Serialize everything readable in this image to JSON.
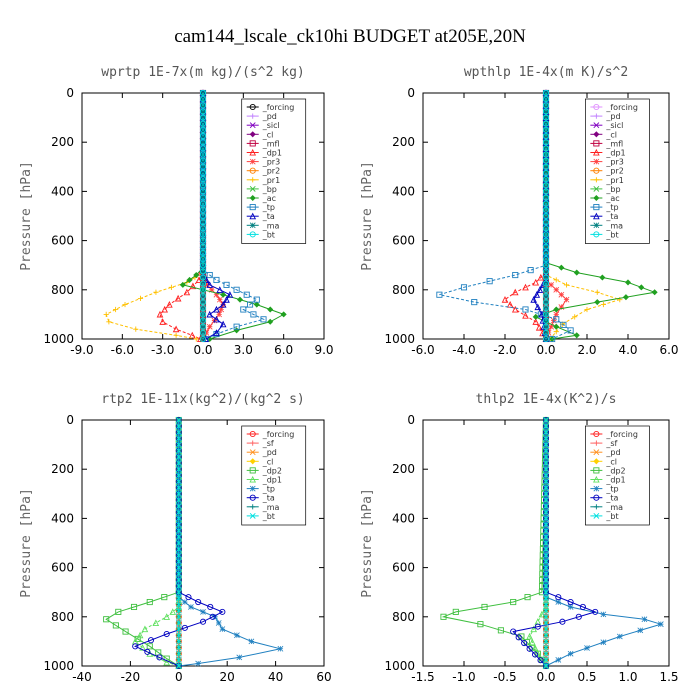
{
  "figure_title": "cam144_lscale_ck10hi  BUDGET at205E,20N",
  "chart_data": [
    {
      "type": "line",
      "title": "wprtp  1E-7x(m kg)/(s^2 kg)",
      "ylabel": "Pressure [hPa]",
      "xlim": [
        -9,
        9
      ],
      "xticks": [
        "-9.0",
        "-6.0",
        "-3.0",
        "0.0",
        "3.0",
        "6.0",
        "9.0"
      ],
      "ylim": [
        1000,
        0
      ],
      "yticks": [
        "0",
        "200",
        "400",
        "600",
        "800",
        "1000"
      ],
      "legend_position": "top-right",
      "series": [
        {
          "name": "_forcing",
          "color": "#000000",
          "x": [
            0,
            0,
            0,
            0,
            0,
            0,
            0,
            0,
            0
          ],
          "y": [
            0,
            100,
            300,
            500,
            700,
            800,
            900,
            950,
            1000
          ]
        },
        {
          "name": "_pd",
          "color": "#c080ff",
          "x": [
            0,
            0,
            0,
            0,
            0
          ],
          "y": [
            0,
            300,
            600,
            900,
            1000
          ]
        },
        {
          "name": "_sicl",
          "color": "#8000c0",
          "x": [
            0,
            0,
            0,
            0,
            0
          ],
          "y": [
            0,
            300,
            600,
            900,
            1000
          ]
        },
        {
          "name": "_cl",
          "color": "#800080",
          "x": [
            0,
            0,
            0,
            0,
            0
          ],
          "y": [
            0,
            300,
            600,
            900,
            1000
          ]
        },
        {
          "name": "_mfl",
          "color": "#c00040",
          "x": [
            0,
            0,
            0,
            0,
            0
          ],
          "y": [
            0,
            300,
            600,
            900,
            1000
          ]
        },
        {
          "name": "_dp1",
          "color": "#ff2020",
          "x": [
            0,
            0,
            -0.3,
            -1.2,
            -2.5,
            -3.2,
            -3.0,
            -2.0,
            -0.8,
            -0.2
          ],
          "y": [
            0,
            700,
            760,
            810,
            860,
            900,
            930,
            960,
            985,
            1000
          ]
        },
        {
          "name": "_pr3",
          "color": "#ff4040",
          "x": [
            0,
            0,
            0.3,
            1.0,
            1.5,
            1.2,
            0.5,
            0
          ],
          "y": [
            0,
            720,
            780,
            820,
            860,
            900,
            950,
            1000
          ]
        },
        {
          "name": "_pr2",
          "color": "#ff8000",
          "x": [
            0,
            0,
            0,
            0
          ],
          "y": [
            0,
            500,
            900,
            1000
          ]
        },
        {
          "name": "_pr1",
          "color": "#ffc000",
          "x": [
            0,
            0,
            -1.2,
            -3.5,
            -5.8,
            -7.2,
            -7.0,
            -5.0,
            -2.0,
            -0.5
          ],
          "y": [
            0,
            730,
            770,
            810,
            860,
            900,
            930,
            960,
            985,
            1000
          ]
        },
        {
          "name": "_bp",
          "color": "#40c040",
          "x": [
            0,
            0,
            0,
            0
          ],
          "y": [
            0,
            500,
            900,
            1000
          ]
        },
        {
          "name": "_ac",
          "color": "#20a020",
          "x": [
            0,
            0,
            -0.5,
            -1.5,
            1.5,
            4.0,
            6.0,
            5.0,
            2.5,
            0.5
          ],
          "y": [
            0,
            710,
            740,
            780,
            820,
            860,
            900,
            930,
            965,
            1000
          ]
        },
        {
          "name": "_tp",
          "color": "#2080c0",
          "x": [
            0,
            0,
            1.0,
            2.5,
            4.0,
            3.0,
            4.5,
            2.5,
            1.0,
            0.2
          ],
          "y": [
            0,
            720,
            760,
            800,
            840,
            880,
            920,
            950,
            980,
            1000
          ]
        },
        {
          "name": "_ta",
          "color": "#0000c0",
          "x": [
            0,
            0,
            0.5,
            2.0,
            1.5,
            0.5,
            1.5,
            1.0,
            0.2
          ],
          "y": [
            0,
            740,
            780,
            820,
            860,
            900,
            940,
            975,
            1000
          ]
        },
        {
          "name": "_ma",
          "color": "#008080",
          "x": [
            0,
            0,
            0,
            0
          ],
          "y": [
            0,
            500,
            900,
            1000
          ]
        },
        {
          "name": "_bt",
          "color": "#00e0e0",
          "x": [
            0,
            0,
            0,
            0
          ],
          "y": [
            0,
            500,
            900,
            1000
          ]
        }
      ]
    },
    {
      "type": "line",
      "title": "wpthlp  1E-4x(m K)/s^2",
      "ylabel": "Pressure [hPa]",
      "xlim": [
        -6,
        6
      ],
      "xticks": [
        "-6.0",
        "-4.0",
        "-2.0",
        "0.0",
        "2.0",
        "4.0",
        "6.0"
      ],
      "ylim": [
        1000,
        0
      ],
      "yticks": [
        "0",
        "200",
        "400",
        "600",
        "800",
        "1000"
      ],
      "legend_position": "top-right",
      "series": [
        {
          "name": "_forcing",
          "color": "#e090ff",
          "x": [
            0,
            0,
            0,
            0,
            0,
            0,
            0,
            0
          ],
          "y": [
            0,
            100,
            300,
            500,
            700,
            800,
            900,
            1000
          ]
        },
        {
          "name": "_pd",
          "color": "#c080ff",
          "x": [
            0,
            0,
            0,
            0
          ],
          "y": [
            0,
            500,
            900,
            1000
          ]
        },
        {
          "name": "_sicl",
          "color": "#8000c0",
          "x": [
            0,
            0,
            0,
            0
          ],
          "y": [
            0,
            500,
            900,
            1000
          ]
        },
        {
          "name": "_cl",
          "color": "#800080",
          "x": [
            0,
            0,
            0,
            0
          ],
          "y": [
            0,
            500,
            900,
            1000
          ]
        },
        {
          "name": "_mfl",
          "color": "#c00040",
          "x": [
            0,
            0,
            0,
            0
          ],
          "y": [
            0,
            500,
            900,
            1000
          ]
        },
        {
          "name": "_dp1",
          "color": "#ff2020",
          "x": [
            0,
            0,
            -0.5,
            -1.5,
            -2.0,
            -1.5,
            -0.5,
            0
          ],
          "y": [
            0,
            730,
            770,
            810,
            840,
            880,
            930,
            1000
          ]
        },
        {
          "name": "_pr3",
          "color": "#ff4040",
          "x": [
            0,
            0,
            0.5,
            1.0,
            0.5,
            0
          ],
          "y": [
            0,
            760,
            800,
            840,
            900,
            1000
          ]
        },
        {
          "name": "_pr2",
          "color": "#ff8000",
          "x": [
            0,
            0,
            0,
            0
          ],
          "y": [
            0,
            500,
            900,
            1000
          ]
        },
        {
          "name": "_pr1",
          "color": "#ffc000",
          "x": [
            0,
            0,
            1.0,
            2.5,
            3.6,
            2.0,
            0.8,
            0.2
          ],
          "y": [
            0,
            740,
            780,
            810,
            840,
            880,
            940,
            1000
          ]
        },
        {
          "name": "_bp",
          "color": "#40c040",
          "x": [
            0,
            0,
            0,
            0
          ],
          "y": [
            0,
            500,
            900,
            1000
          ]
        },
        {
          "name": "_ac",
          "color": "#20a020",
          "x": [
            0,
            0,
            1.5,
            4.0,
            5.3,
            2.5,
            0.5,
            -0.5,
            0.5,
            1.5,
            0.3
          ],
          "y": [
            0,
            690,
            730,
            770,
            810,
            850,
            880,
            910,
            950,
            985,
            1000
          ]
        },
        {
          "name": "_tp",
          "color": "#2080c0",
          "x": [
            0,
            0,
            -1.5,
            -4.0,
            -5.2,
            -3.5,
            -1.0,
            0.5,
            1.2,
            0.3
          ],
          "y": [
            0,
            700,
            740,
            790,
            820,
            850,
            880,
            920,
            965,
            1000
          ]
        },
        {
          "name": "_ta",
          "color": "#0000c0",
          "x": [
            0,
            0,
            -0.3,
            -0.6,
            -0.2,
            0
          ],
          "y": [
            0,
            760,
            800,
            840,
            900,
            1000
          ]
        },
        {
          "name": "_ma",
          "color": "#008080",
          "x": [
            0,
            0,
            0,
            0
          ],
          "y": [
            0,
            500,
            900,
            1000
          ]
        },
        {
          "name": "_bt",
          "color": "#00e0e0",
          "x": [
            0,
            0,
            0,
            0
          ],
          "y": [
            0,
            500,
            900,
            1000
          ]
        }
      ]
    },
    {
      "type": "line",
      "title": "rtp2  1E-11x(kg^2)/(kg^2 s)",
      "ylabel": "Pressure [hPa]",
      "xlim": [
        -40,
        60
      ],
      "xticks": [
        "-40",
        "-20",
        "0",
        "20",
        "40",
        "60"
      ],
      "ylim": [
        1000,
        0
      ],
      "yticks": [
        "0",
        "200",
        "400",
        "600",
        "800",
        "1000"
      ],
      "legend_position": "top-right",
      "series": [
        {
          "name": "_forcing",
          "color": "#ff2020",
          "x": [
            0,
            0,
            0,
            0,
            0,
            0,
            0,
            0
          ],
          "y": [
            0,
            100,
            300,
            500,
            700,
            800,
            900,
            1000
          ]
        },
        {
          "name": "_sf",
          "color": "#ff6060",
          "x": [
            0,
            0,
            0,
            0
          ],
          "y": [
            0,
            500,
            900,
            1000
          ]
        },
        {
          "name": "_pd",
          "color": "#ff9020",
          "x": [
            0,
            0,
            0,
            0
          ],
          "y": [
            0,
            500,
            900,
            1000
          ]
        },
        {
          "name": "_cl",
          "color": "#ffd000",
          "x": [
            0,
            0,
            0,
            0
          ],
          "y": [
            0,
            500,
            900,
            1000
          ]
        },
        {
          "name": "_dp2",
          "color": "#40c040",
          "x": [
            0,
            0,
            -12,
            -25,
            -30,
            -22,
            -12,
            -5,
            0
          ],
          "y": [
            0,
            700,
            740,
            780,
            810,
            860,
            920,
            970,
            1000
          ]
        },
        {
          "name": "_dp1",
          "color": "#60e060",
          "x": [
            0,
            0,
            -5,
            -14,
            -18,
            -12,
            -5,
            0
          ],
          "y": [
            0,
            760,
            800,
            850,
            900,
            950,
            985,
            1000
          ]
        },
        {
          "name": "_tp",
          "color": "#2080c0",
          "x": [
            0,
            0,
            5,
            15,
            18,
            30,
            42,
            25,
            8,
            0
          ],
          "y": [
            0,
            720,
            760,
            800,
            850,
            900,
            930,
            965,
            990,
            1000
          ]
        },
        {
          "name": "_ta",
          "color": "#0000c0",
          "x": [
            0,
            0,
            8,
            18,
            10,
            -5,
            -18,
            -8,
            0
          ],
          "y": [
            0,
            700,
            740,
            780,
            820,
            870,
            920,
            965,
            1000
          ]
        },
        {
          "name": "_ma",
          "color": "#008080",
          "x": [
            0,
            0,
            0,
            0
          ],
          "y": [
            0,
            500,
            900,
            1000
          ]
        },
        {
          "name": "_bt",
          "color": "#00e0e0",
          "x": [
            0,
            0,
            0,
            0
          ],
          "y": [
            0,
            500,
            900,
            1000
          ]
        }
      ]
    },
    {
      "type": "line",
      "title": "thlp2  1E-4x(K^2)/s",
      "ylabel": "Pressure [hPa]",
      "xlim": [
        -1.5,
        1.5
      ],
      "xticks": [
        "-1.5",
        "-1.0",
        "-0.5",
        "0.0",
        "0.5",
        "1.0",
        "1.5"
      ],
      "ylim": [
        1000,
        0
      ],
      "yticks": [
        "0",
        "200",
        "400",
        "600",
        "800",
        "1000"
      ],
      "legend_position": "top-right",
      "series": [
        {
          "name": "_forcing",
          "color": "#ff2020",
          "x": [
            0,
            0,
            0,
            0,
            0,
            0,
            0,
            0
          ],
          "y": [
            0,
            100,
            300,
            500,
            700,
            800,
            900,
            1000
          ]
        },
        {
          "name": "_sf",
          "color": "#ff6060",
          "x": [
            0,
            0,
            0,
            0
          ],
          "y": [
            0,
            500,
            900,
            1000
          ]
        },
        {
          "name": "_pd",
          "color": "#ff9020",
          "x": [
            0,
            0,
            0,
            0
          ],
          "y": [
            0,
            500,
            900,
            1000
          ]
        },
        {
          "name": "_cl",
          "color": "#ffd000",
          "x": [
            0,
            0,
            0,
            0
          ],
          "y": [
            0,
            500,
            900,
            1000
          ]
        },
        {
          "name": "_dp2",
          "color": "#40c040",
          "x": [
            0,
            -0.05,
            -0.4,
            -1.1,
            -1.25,
            -0.8,
            -0.3,
            -0.1,
            0
          ],
          "y": [
            0,
            700,
            740,
            780,
            800,
            830,
            880,
            950,
            1000
          ]
        },
        {
          "name": "_dp1",
          "color": "#60e060",
          "x": [
            0,
            0,
            -0.1,
            -0.2,
            -0.1,
            0
          ],
          "y": [
            0,
            760,
            820,
            880,
            950,
            1000
          ]
        },
        {
          "name": "_tp",
          "color": "#2080c0",
          "x": [
            0,
            0,
            0.3,
            0.7,
            1.2,
            1.4,
            0.9,
            0.3,
            0
          ],
          "y": [
            0,
            720,
            760,
            790,
            810,
            830,
            880,
            950,
            1000
          ]
        },
        {
          "name": "_ta",
          "color": "#0000c0",
          "x": [
            0,
            0,
            0.3,
            0.6,
            0.2,
            -0.4,
            -0.2,
            0
          ],
          "y": [
            0,
            700,
            740,
            780,
            820,
            860,
            930,
            1000
          ]
        },
        {
          "name": "_ma",
          "color": "#008080",
          "x": [
            0,
            0,
            0,
            0
          ],
          "y": [
            0,
            500,
            900,
            1000
          ]
        },
        {
          "name": "_bt",
          "color": "#00e0e0",
          "x": [
            0,
            0,
            0,
            0
          ],
          "y": [
            0,
            500,
            900,
            1000
          ]
        }
      ]
    }
  ]
}
